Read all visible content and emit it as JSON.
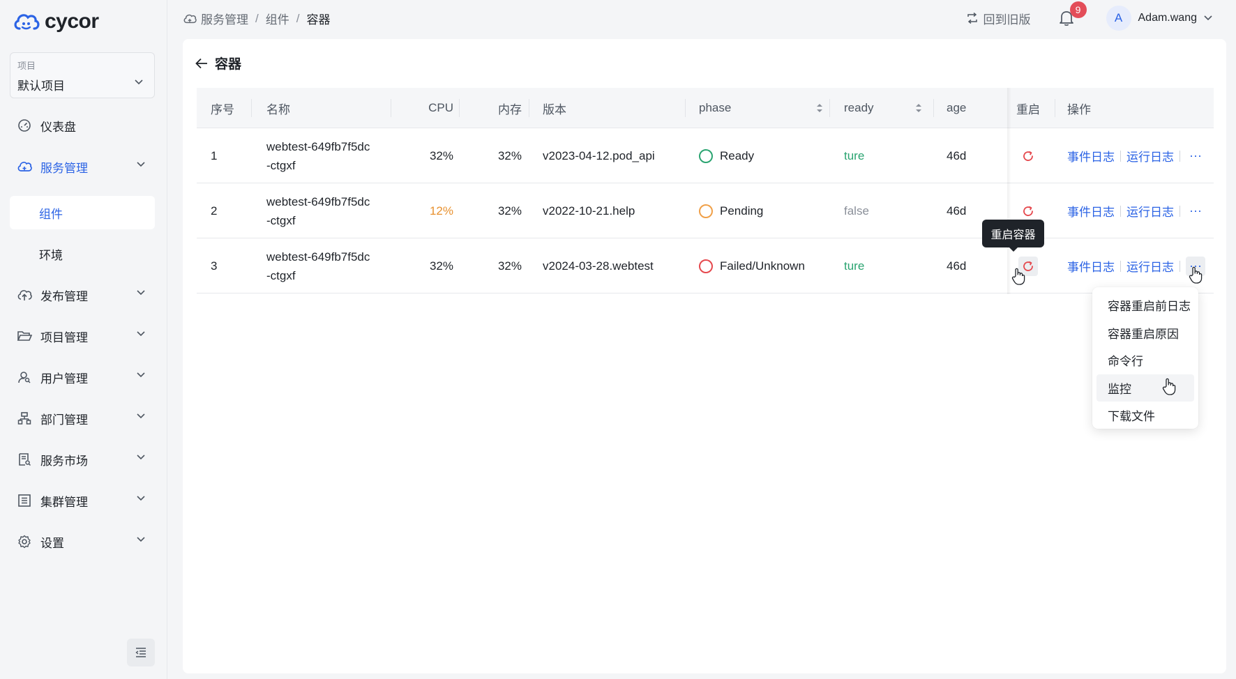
{
  "app": {
    "brand": "cycor"
  },
  "sidebar": {
    "project_label": "项目",
    "project_value": "默认项目",
    "items": [
      {
        "label": "仪表盘",
        "icon": "dashboard-icon"
      },
      {
        "label": "服务管理",
        "icon": "cloud-service-icon",
        "expanded": true
      },
      {
        "label": "发布管理",
        "icon": "cloud-upload-icon"
      },
      {
        "label": "项目管理",
        "icon": "folder-open-icon"
      },
      {
        "label": "用户管理",
        "icon": "user-search-icon"
      },
      {
        "label": "部门管理",
        "icon": "org-chart-icon"
      },
      {
        "label": "服务市场",
        "icon": "market-doc-icon"
      },
      {
        "label": "集群管理",
        "icon": "cluster-icon"
      },
      {
        "label": "设置",
        "icon": "gear-icon"
      }
    ],
    "sub_items": [
      {
        "label": "组件",
        "selected": true
      },
      {
        "label": "环境"
      }
    ]
  },
  "header": {
    "breadcrumb": [
      "服务管理",
      "组件",
      "容器"
    ],
    "old_version": "回到旧版",
    "notification_count": "9",
    "user_initial": "A",
    "user_name": "Adam.wang"
  },
  "page": {
    "title": "容器"
  },
  "table": {
    "columns": [
      "序号",
      "名称",
      "CPU",
      "内存",
      "版本",
      "phase",
      "ready",
      "age",
      "重启",
      "操作"
    ],
    "rows": [
      {
        "index": "1",
        "name_line1": "webtest-649fb7f5dc",
        "name_line2": "-ctgxf",
        "cpu": "32%",
        "memory": "32%",
        "version": "v2023-04-12.pod_api",
        "phase": "Ready",
        "ready": "ture",
        "age": "46d"
      },
      {
        "index": "2",
        "name_line1": "webtest-649fb7f5dc",
        "name_line2": "-ctgxf",
        "cpu": "12%",
        "memory": "32%",
        "version": "v2022-10-21.help",
        "phase": "Pending",
        "ready": "false",
        "age": "46d"
      },
      {
        "index": "3",
        "name_line1": "webtest-649fb7f5dc",
        "name_line2": "-ctgxf",
        "cpu": "32%",
        "memory": "32%",
        "version": "v2024-03-28.webtest",
        "phase": "Failed/Unknown",
        "ready": "ture",
        "age": "46d"
      }
    ],
    "action_event_log": "事件日志",
    "action_run_log": "运行日志",
    "more": "···"
  },
  "tooltip": {
    "text": "重启容器"
  },
  "dropdown": {
    "items": [
      "容器重启前日志",
      "容器重启原因",
      "命令行",
      "监控",
      "下载文件"
    ]
  },
  "colors": {
    "primary": "#2b63e5",
    "ready_green": "#2ba471",
    "pending_orange": "#f0a048",
    "failed_red": "#e5484d",
    "cpu_warning": "#e8912f",
    "false_gray": "#8a8f99"
  }
}
